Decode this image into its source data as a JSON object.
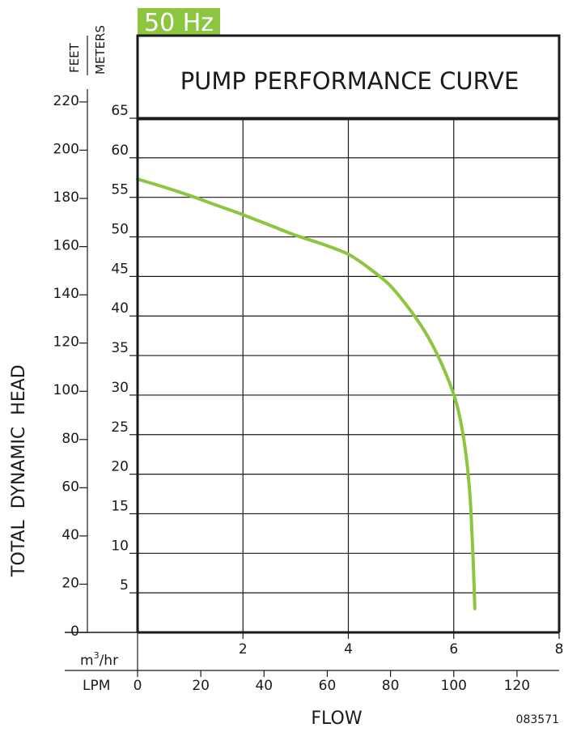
{
  "badge": {
    "label": "50 Hz",
    "color": "#8cc63f"
  },
  "chart_data": {
    "type": "line",
    "title": "PUMP PERFORMANCE CURVE",
    "xlabel": "FLOW",
    "ylabel": "TOTAL  DYNAMIC  HEAD",
    "figure_id": "083571",
    "line_color": "#8cc63f",
    "grid": true,
    "axes": {
      "meters": {
        "label": "METERS",
        "ticks": [
          5,
          10,
          15,
          20,
          25,
          30,
          35,
          40,
          45,
          50,
          55,
          60,
          65
        ],
        "range": [
          0,
          65
        ]
      },
      "feet": {
        "label": "FEET",
        "ticks": [
          0,
          20,
          40,
          60,
          80,
          100,
          120,
          140,
          160,
          180,
          200,
          220
        ]
      },
      "m3hr": {
        "label": "m³/hr",
        "label_base": "m",
        "label_sup": "3",
        "label_rest": "/hr",
        "ticks": [
          2,
          4,
          6,
          8
        ],
        "range": [
          0,
          8
        ]
      },
      "lpm": {
        "label": "LPM",
        "ticks": [
          0,
          20,
          40,
          60,
          80,
          100,
          120
        ]
      }
    },
    "series": [
      {
        "x_unit": "m3/hr",
        "y_unit": "m",
        "points": [
          [
            0,
            57.3
          ],
          [
            0.5,
            56.3
          ],
          [
            1.0,
            55.2
          ],
          [
            1.5,
            54.0
          ],
          [
            2.0,
            52.8
          ],
          [
            2.5,
            51.5
          ],
          [
            3.0,
            50.2
          ],
          [
            3.5,
            49.1
          ],
          [
            4.0,
            47.8
          ],
          [
            4.4,
            46.0
          ],
          [
            4.8,
            43.8
          ],
          [
            5.2,
            40.5
          ],
          [
            5.5,
            37.5
          ],
          [
            5.8,
            33.5
          ],
          [
            6.05,
            29.0
          ],
          [
            6.2,
            24.0
          ],
          [
            6.3,
            18.0
          ],
          [
            6.35,
            12.0
          ],
          [
            6.38,
            7.0
          ],
          [
            6.4,
            3.0
          ]
        ]
      }
    ]
  }
}
